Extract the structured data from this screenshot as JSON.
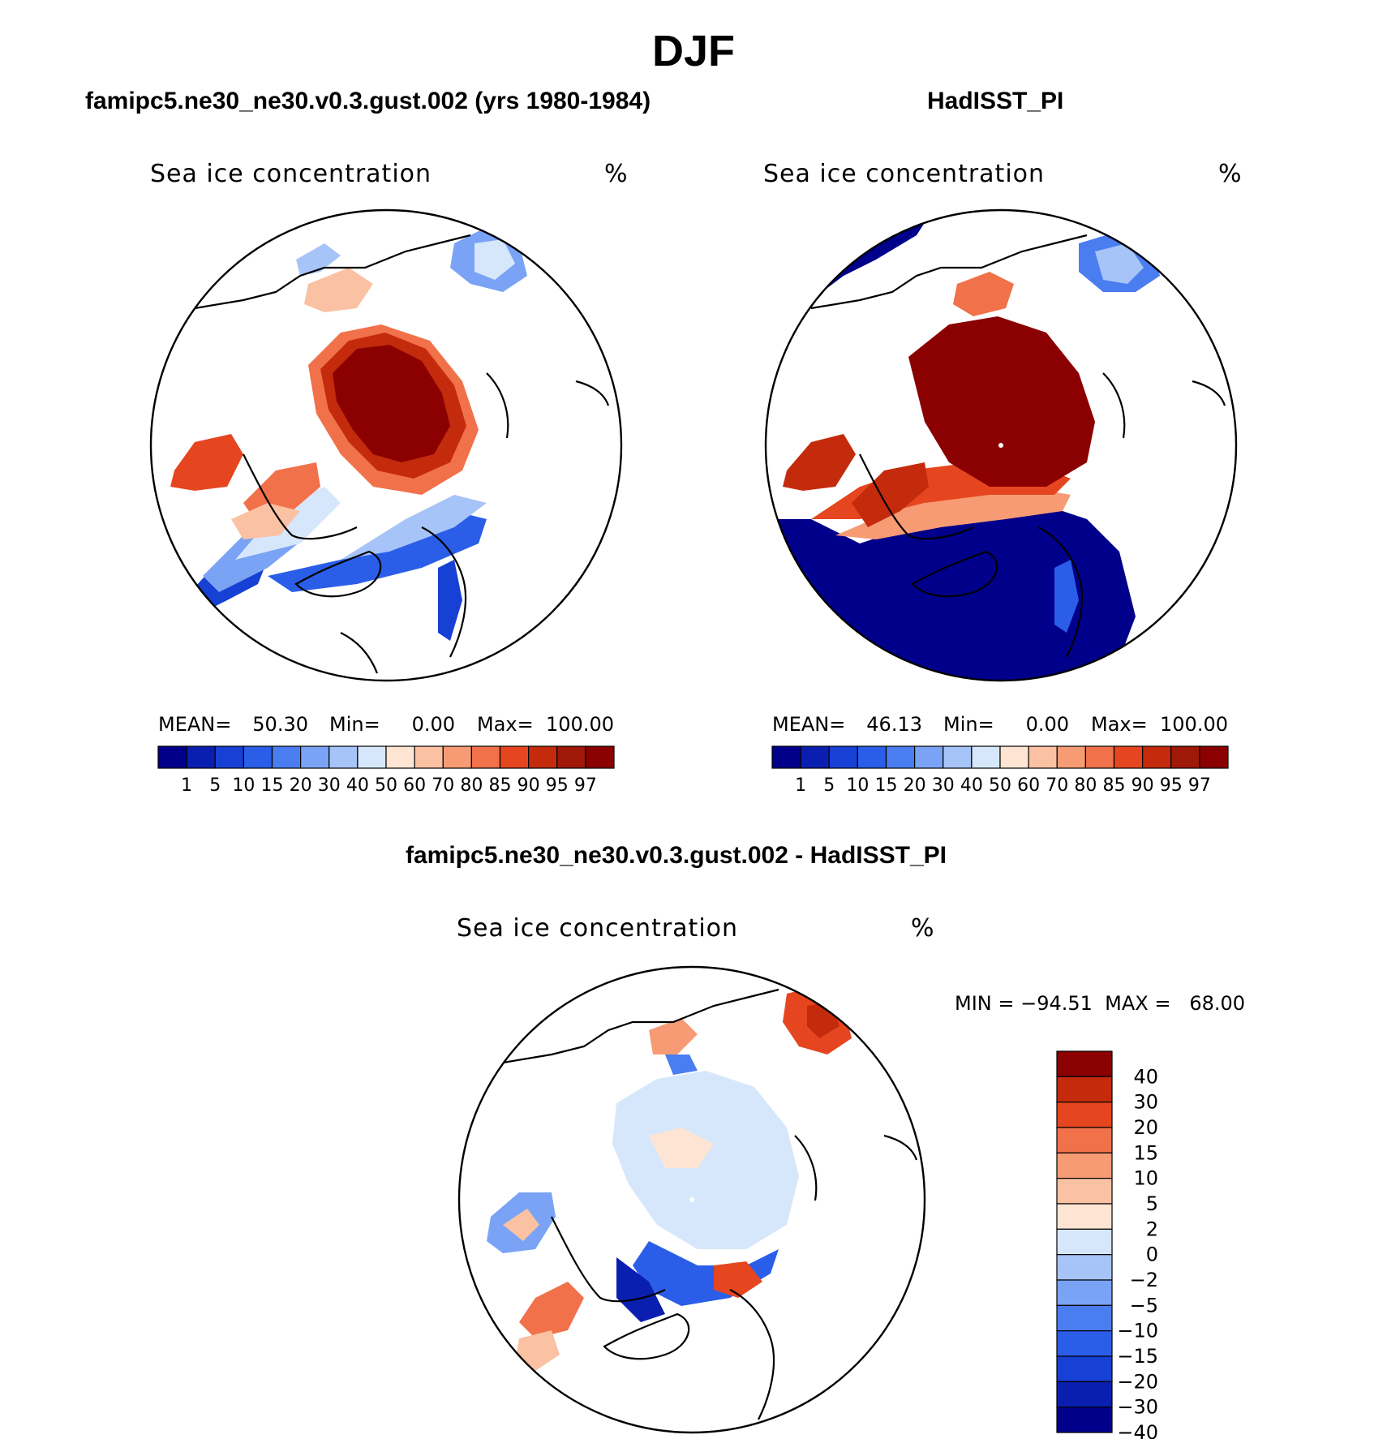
{
  "figure": {
    "title": "DJF",
    "diff_title": "famipc5.ne30_ne30.v0.3.gust.002 - HadISST_PI"
  },
  "chart_data": [
    {
      "type": "heatmap",
      "title": "famipc5.ne30_ne30.v0.3.gust.002 (yrs 1980-1984)",
      "variable": "Sea ice concentration",
      "units": "%",
      "projection": "north polar stereographic",
      "stats": {
        "mean_label": "MEAN=",
        "mean": "50.30",
        "min_label": "Min=",
        "min": "0.00",
        "max_label": "Max=",
        "max": "100.00"
      },
      "colorbar": {
        "levels": [
          "1",
          "5",
          "10",
          "15",
          "20",
          "30",
          "40",
          "50",
          "60",
          "70",
          "80",
          "85",
          "90",
          "95",
          "97"
        ],
        "colors": [
          "#00008b",
          "#0a1fb0",
          "#1740d4",
          "#2b5ee8",
          "#4a7df0",
          "#7aa3f5",
          "#a7c4f8",
          "#d6e7fb",
          "#fde4d3",
          "#fbc1a3",
          "#f79b75",
          "#f1714a",
          "#e5461f",
          "#c42b0c",
          "#a01808",
          "#8b0000"
        ]
      }
    },
    {
      "type": "heatmap",
      "title": "HadISST_PI",
      "variable": "Sea ice concentration",
      "units": "%",
      "projection": "north polar stereographic",
      "stats": {
        "mean_label": "MEAN=",
        "mean": "46.13",
        "min_label": "Min=",
        "min": "0.00",
        "max_label": "Max=",
        "max": "100.00"
      },
      "colorbar": {
        "levels": [
          "1",
          "5",
          "10",
          "15",
          "20",
          "30",
          "40",
          "50",
          "60",
          "70",
          "80",
          "85",
          "90",
          "95",
          "97"
        ],
        "colors": [
          "#00008b",
          "#0a1fb0",
          "#1740d4",
          "#2b5ee8",
          "#4a7df0",
          "#7aa3f5",
          "#a7c4f8",
          "#d6e7fb",
          "#fde4d3",
          "#fbc1a3",
          "#f79b75",
          "#f1714a",
          "#e5461f",
          "#c42b0c",
          "#a01808",
          "#8b0000"
        ]
      }
    },
    {
      "type": "heatmap",
      "title": "famipc5.ne30_ne30.v0.3.gust.002 - HadISST_PI",
      "variable": "Sea ice concentration",
      "units": "%",
      "projection": "north polar stereographic",
      "stats_text": "MIN = −94.51  MAX =   68.00",
      "colorbar": {
        "levels": [
          "40",
          "30",
          "20",
          "15",
          "10",
          "5",
          "2",
          "0",
          "−2",
          "−5",
          "−10",
          "−15",
          "−20",
          "−30",
          "−40"
        ],
        "colors": [
          "#8b0000",
          "#c42b0c",
          "#e5461f",
          "#f1714a",
          "#f79b75",
          "#fbc1a3",
          "#fde4d3",
          "#d6e7fb",
          "#a7c4f8",
          "#7aa3f5",
          "#4a7df0",
          "#2b5ee8",
          "#1740d4",
          "#0a1fb0",
          "#00008b"
        ]
      }
    }
  ]
}
